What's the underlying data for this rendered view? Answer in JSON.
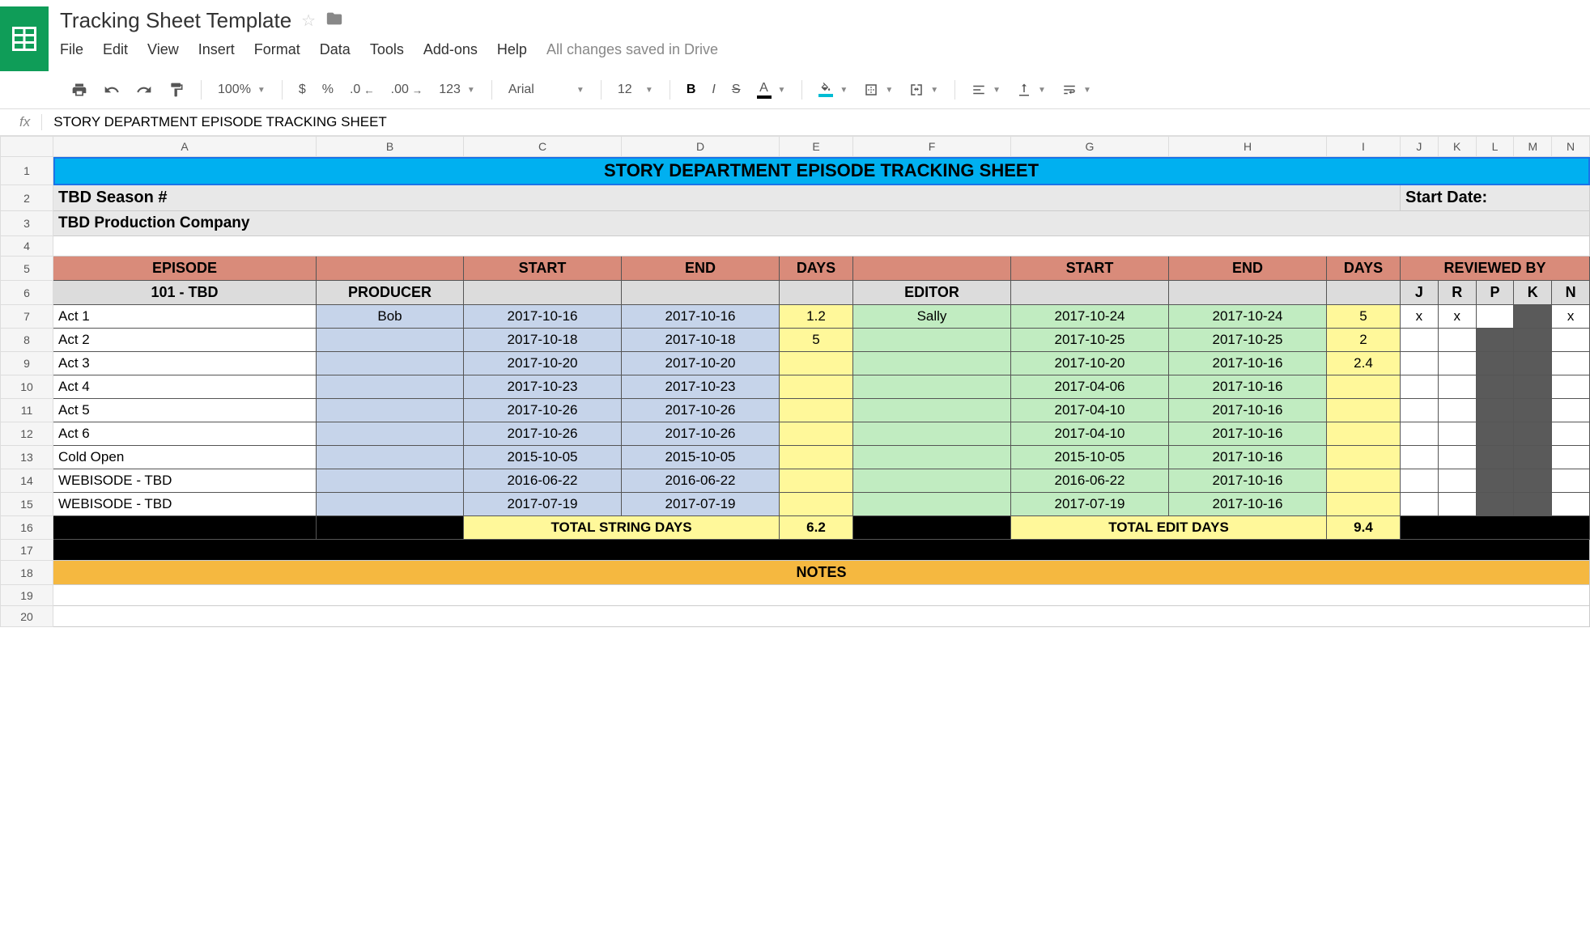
{
  "doc_title": "Tracking Sheet Template",
  "save_status": "All changes saved in Drive",
  "menu": {
    "file": "File",
    "edit": "Edit",
    "view": "View",
    "insert": "Insert",
    "format": "Format",
    "data": "Data",
    "tools": "Tools",
    "addons": "Add-ons",
    "help": "Help"
  },
  "toolbar": {
    "zoom": "100%",
    "currency": "$",
    "percent": "%",
    "dec_dec": ".0",
    "inc_dec": ".00",
    "more_formats": "123",
    "font": "Arial",
    "font_size": "12",
    "bold": "B",
    "italic": "I",
    "strike": "S",
    "text_color": "A"
  },
  "fx_label": "fx",
  "formula_value": "STORY DEPARTMENT EPISODE TRACKING SHEET",
  "columns": [
    "A",
    "B",
    "C",
    "D",
    "E",
    "F",
    "G",
    "H",
    "I",
    "J",
    "K",
    "L",
    "M",
    "N"
  ],
  "row_numbers": [
    1,
    2,
    3,
    4,
    5,
    6,
    7,
    8,
    9,
    10,
    11,
    12,
    13,
    14,
    15,
    16,
    17,
    18,
    19,
    20
  ],
  "sheet": {
    "title": "STORY DEPARTMENT EPISODE TRACKING SHEET",
    "season": "TBD Season #",
    "start_date_label": "Start Date:",
    "company": "TBD Production Company",
    "hdr": {
      "episode": "EPISODE",
      "start": "START",
      "end": "END",
      "days": "DAYS",
      "start2": "START",
      "end2": "END",
      "days2": "DAYS",
      "reviewed": "REVIEWED BY"
    },
    "subhdr": {
      "ep_name": "101 - TBD",
      "producer": "PRODUCER",
      "editor": "EDITOR",
      "j": "J",
      "r": "R",
      "p": "P",
      "k": "K",
      "n": "N"
    },
    "rows": [
      {
        "act": "Act 1",
        "producer": "Bob",
        "pstart": "2017-10-16",
        "pend": "2017-10-16",
        "pdays": "1.2",
        "editor": "Sally",
        "estart": "2017-10-24",
        "eend": "2017-10-24",
        "edays": "5",
        "rev": {
          "j": "x",
          "r": "x",
          "p": "",
          "k": "",
          "n": "x"
        }
      },
      {
        "act": "Act 2",
        "producer": "",
        "pstart": "2017-10-18",
        "pend": "2017-10-18",
        "pdays": "5",
        "editor": "",
        "estart": "2017-10-25",
        "eend": "2017-10-25",
        "edays": "2",
        "rev": {
          "j": "",
          "r": "",
          "p": "",
          "k": "",
          "n": ""
        }
      },
      {
        "act": "Act 3",
        "producer": "",
        "pstart": "2017-10-20",
        "pend": "2017-10-20",
        "pdays": "",
        "editor": "",
        "estart": "2017-10-20",
        "eend": "2017-10-16",
        "edays": "2.4",
        "rev": {
          "j": "",
          "r": "",
          "p": "",
          "k": "",
          "n": ""
        }
      },
      {
        "act": "Act 4",
        "producer": "",
        "pstart": "2017-10-23",
        "pend": "2017-10-23",
        "pdays": "",
        "editor": "",
        "estart": "2017-04-06",
        "eend": "2017-10-16",
        "edays": "",
        "rev": {
          "j": "",
          "r": "",
          "p": "",
          "k": "",
          "n": ""
        }
      },
      {
        "act": "Act 5",
        "producer": "",
        "pstart": "2017-10-26",
        "pend": "2017-10-26",
        "pdays": "",
        "editor": "",
        "estart": "2017-04-10",
        "eend": "2017-10-16",
        "edays": "",
        "rev": {
          "j": "",
          "r": "",
          "p": "",
          "k": "",
          "n": ""
        }
      },
      {
        "act": "Act 6",
        "producer": "",
        "pstart": "2017-10-26",
        "pend": "2017-10-26",
        "pdays": "",
        "editor": "",
        "estart": "2017-04-10",
        "eend": "2017-10-16",
        "edays": "",
        "rev": {
          "j": "",
          "r": "",
          "p": "",
          "k": "",
          "n": ""
        }
      },
      {
        "act": "Cold Open",
        "producer": "",
        "pstart": "2015-10-05",
        "pend": "2015-10-05",
        "pdays": "",
        "editor": "",
        "estart": "2015-10-05",
        "eend": "2017-10-16",
        "edays": "",
        "rev": {
          "j": "",
          "r": "",
          "p": "",
          "k": "",
          "n": ""
        }
      },
      {
        "act": "WEBISODE - TBD",
        "producer": "",
        "pstart": "2016-06-22",
        "pend": "2016-06-22",
        "pdays": "",
        "editor": "",
        "estart": "2016-06-22",
        "eend": "2017-10-16",
        "edays": "",
        "rev": {
          "j": "",
          "r": "",
          "p": "",
          "k": "",
          "n": ""
        }
      },
      {
        "act": "WEBISODE - TBD",
        "producer": "",
        "pstart": "2017-07-19",
        "pend": "2017-07-19",
        "pdays": "",
        "editor": "",
        "estart": "2017-07-19",
        "eend": "2017-10-16",
        "edays": "",
        "rev": {
          "j": "",
          "r": "",
          "p": "",
          "k": "",
          "n": ""
        }
      }
    ],
    "totals": {
      "string_label": "TOTAL STRING DAYS",
      "string_days": "6.2",
      "edit_label": "TOTAL EDIT DAYS",
      "edit_days": "9.4"
    },
    "notes_label": "NOTES"
  }
}
